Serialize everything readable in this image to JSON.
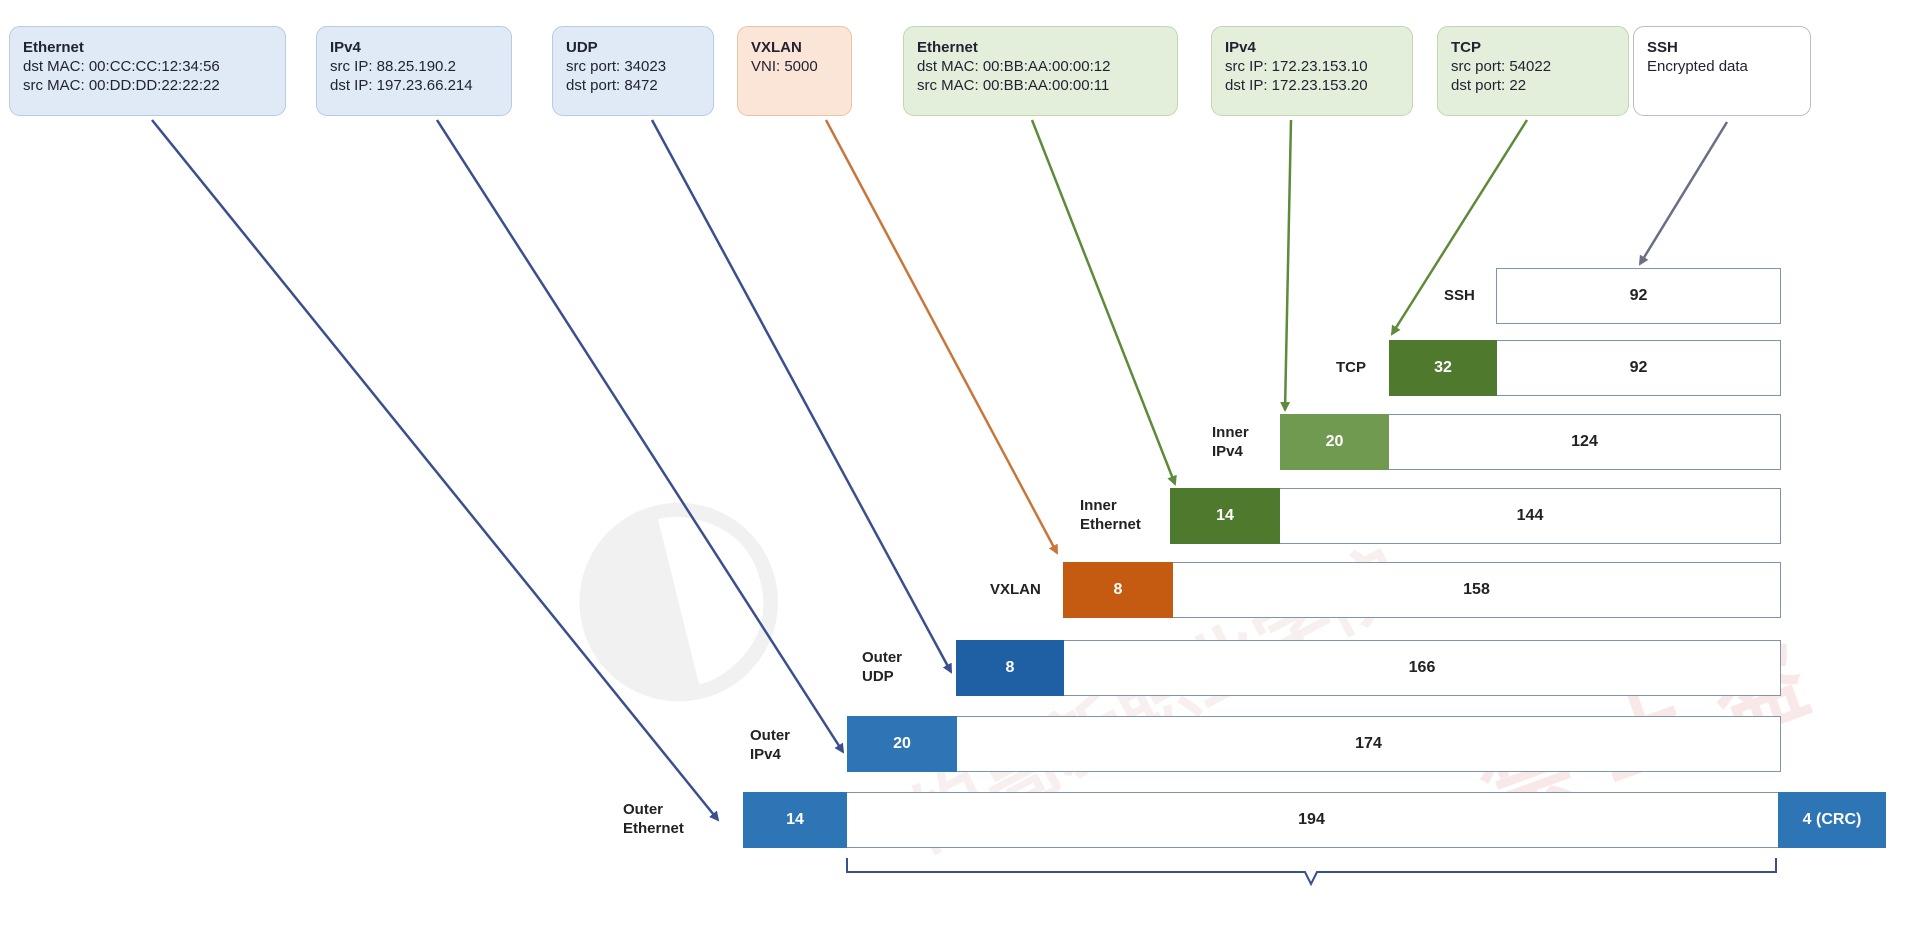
{
  "headers": [
    {
      "title": "Ethernet",
      "lines": [
        "dst MAC: 00:CC:CC:12:34:56",
        "src MAC: 00:DD:DD:22:22:22"
      ]
    },
    {
      "title": "IPv4",
      "lines": [
        "src IP: 88.25.190.2",
        "dst IP: 197.23.66.214"
      ]
    },
    {
      "title": "UDP",
      "lines": [
        "src port: 34023",
        "dst port: 8472"
      ]
    },
    {
      "title": "VXLAN",
      "lines": [
        "VNI: 5000"
      ]
    },
    {
      "title": "Ethernet",
      "lines": [
        "dst MAC: 00:BB:AA:00:00:12",
        "src MAC: 00:BB:AA:00:00:11"
      ]
    },
    {
      "title": "IPv4",
      "lines": [
        "src IP: 172.23.153.10",
        "dst IP: 172.23.153.20"
      ]
    },
    {
      "title": "TCP",
      "lines": [
        "src port: 54022",
        "dst port: 22"
      ]
    },
    {
      "title": "SSH",
      "lines": [
        "Encrypted data"
      ]
    }
  ],
  "layers": [
    {
      "label": "SSH",
      "header_size": "",
      "payload_size": "92"
    },
    {
      "label": "TCP",
      "header_size": "32",
      "payload_size": "92"
    },
    {
      "label": "Inner IPv4",
      "header_size": "20",
      "payload_size": "124"
    },
    {
      "label": "Inner Ethernet",
      "header_size": "14",
      "payload_size": "144"
    },
    {
      "label": "VXLAN",
      "header_size": "8",
      "payload_size": "158"
    },
    {
      "label": "Outer UDP",
      "header_size": "8",
      "payload_size": "166"
    },
    {
      "label": "Outer IPv4",
      "header_size": "20",
      "payload_size": "174"
    },
    {
      "label": "Outer Ethernet",
      "header_size": "14",
      "payload_size": "194",
      "trailer": "4 (CRC)"
    }
  ],
  "colors": {
    "outer_blue": "#2e75b6",
    "outer_blue_dark": "#1f5fa3",
    "vxlan_orange": "#c55a11",
    "inner_green": "#4f7a2e",
    "inner_green_light": "#6f9a4f",
    "arrow_blue": "#3a4f8e",
    "arrow_orange": "#c8763a",
    "arrow_green": "#5e8a3a",
    "arrow_gray": "#6a6f86"
  },
  "watermark": {
    "line1": "的高新职业学院",
    "line2": "禁 止 盗"
  }
}
